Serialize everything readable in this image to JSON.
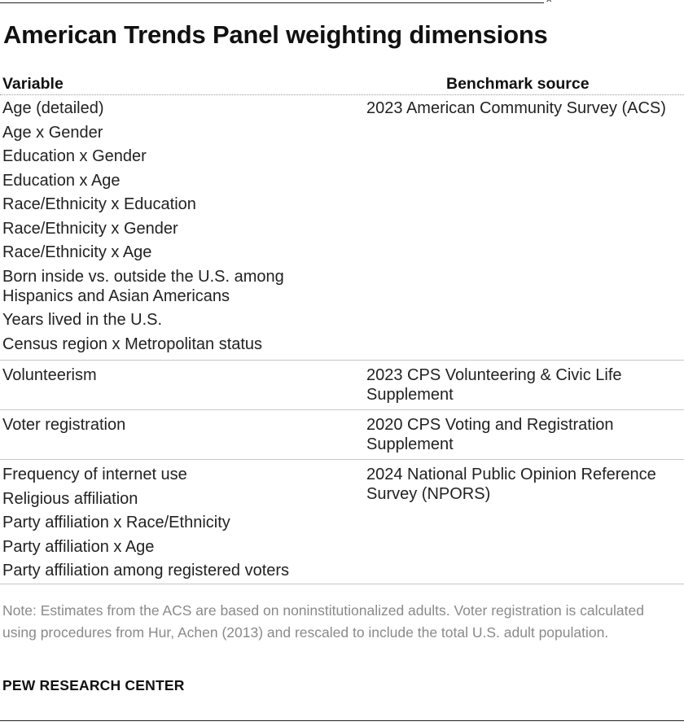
{
  "title": "American Trends Panel weighting dimensions",
  "headers": {
    "variable": "Variable",
    "benchmark_source": "Benchmark source"
  },
  "groups": [
    {
      "variables": [
        "Age (detailed)",
        "Age x Gender",
        "Education x Gender",
        "Education x Age",
        "Race/Ethnicity x Education",
        "Race/Ethnicity x Gender",
        "Race/Ethnicity x Age",
        "Born inside vs. outside the U.S. among Hispanics and Asian Americans",
        "Years lived in the U.S.",
        "Census region x Metropolitan status"
      ],
      "source": "2023 American Community Survey (ACS)"
    },
    {
      "variables": [
        "Volunteerism"
      ],
      "source": "2023 CPS Volunteering & Civic Life Supplement"
    },
    {
      "variables": [
        "Voter registration"
      ],
      "source": "2020 CPS Voting and Registration Supplement"
    },
    {
      "variables": [
        "Frequency of internet use",
        "Religious affiliation",
        "Party affiliation x Race/Ethnicity",
        "Party affiliation x Age",
        "Party affiliation among registered voters"
      ],
      "source": "2024 National Public Opinion Reference Survey (NPORS)"
    }
  ],
  "note": "Note: Estimates from the ACS are based on noninstitutionalized adults. Voter registration is calculated using procedures from Hur, Achen (2013) and rescaled to include the total U.S. adult population.",
  "source_label": "PEW RESEARCH CENTER",
  "colors": {
    "text": "#222222",
    "note_text": "#8a8a8a",
    "row_divider": "#c7c7c7",
    "header_divider": "#9a9a9a"
  }
}
